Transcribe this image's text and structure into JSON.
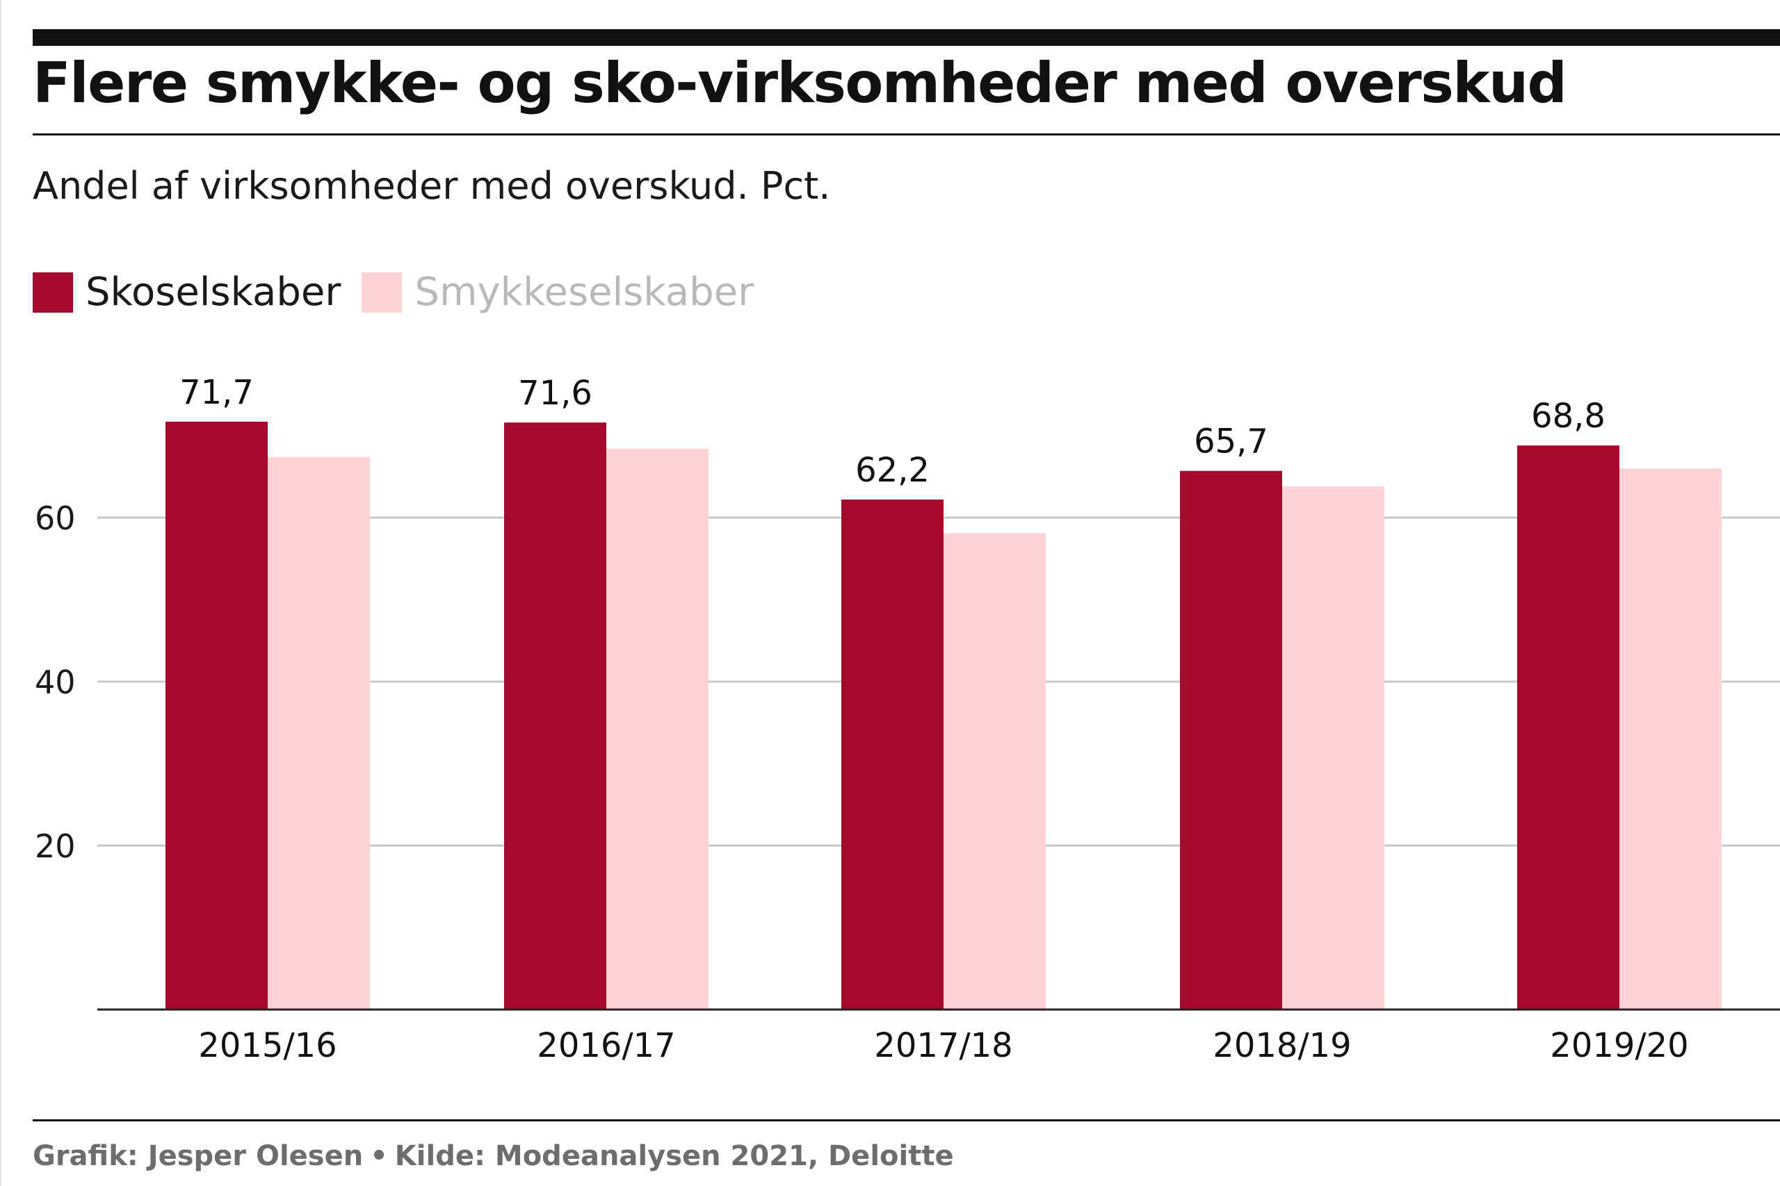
{
  "title": "Flere smykke- og sko-virksomheder med overskud",
  "subtitle": "Andel af virksomheder med overskud. Pct.",
  "colors": {
    "primary": "#a50a2c",
    "secondary": "#ffd3d5",
    "grid": "#c8c8c8",
    "axis": "#222222"
  },
  "legend": [
    {
      "label": "Skoselskaber",
      "color": "#a50a2c",
      "text_color": "#1a1a1a"
    },
    {
      "label": "Smykkeselskaber",
      "color": "#ffd3d5",
      "text_color": "#b9b9b9"
    }
  ],
  "footer": {
    "credit": "Grafik: Jesper Olesen",
    "separator": "•",
    "source": "Kilde: Modeanalysen 2021, Deloitte"
  },
  "chart_data": {
    "type": "bar",
    "title": "Flere smykke- og sko-virksomheder med overskud",
    "subtitle": "Andel af virksomheder med overskud. Pct.",
    "xlabel": "",
    "ylabel": "Pct.",
    "categories": [
      "2015/16",
      "2016/17",
      "2017/18",
      "2018/19",
      "2019/20"
    ],
    "series": [
      {
        "name": "Skoselskaber",
        "values": [
          71.7,
          71.6,
          62.2,
          65.7,
          68.8
        ],
        "labels": [
          "71,7",
          "71,6",
          "62,2",
          "65,7",
          "68,8"
        ]
      },
      {
        "name": "Smykkeselskaber",
        "values": [
          67.4,
          68.4,
          58.1,
          63.8,
          66.0
        ]
      }
    ],
    "yticks": [
      20,
      40,
      60
    ],
    "ylim": [
      0,
      75
    ],
    "grid": true,
    "legend_position": "top-left"
  }
}
